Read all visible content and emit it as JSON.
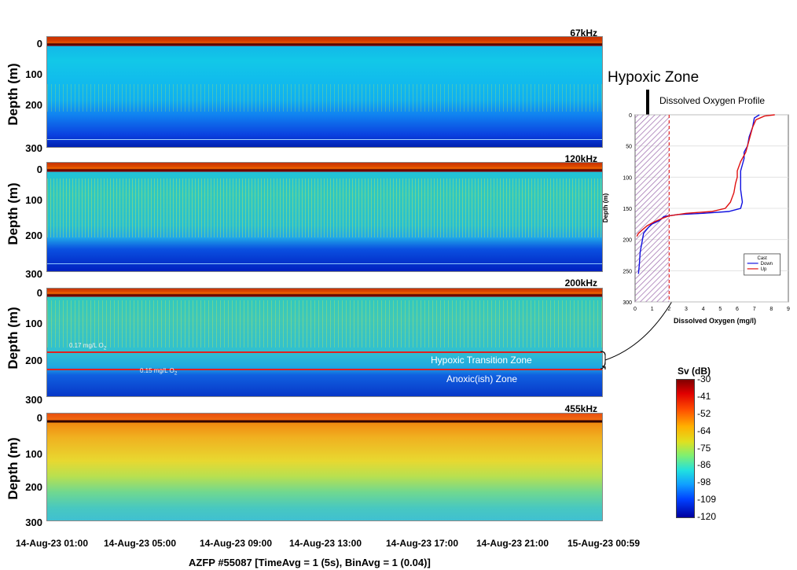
{
  "chart_data": [
    {
      "type": "heatmap",
      "title": "67kHz",
      "ylabel": "Depth (m)",
      "ylim": [
        0,
        300
      ],
      "ytick_labels": [
        "0",
        "100",
        "200",
        "300"
      ]
    },
    {
      "type": "heatmap",
      "title": "120kHz",
      "ylabel": "Depth (m)",
      "ylim": [
        0,
        300
      ],
      "ytick_labels": [
        "0",
        "100",
        "200",
        "300"
      ]
    },
    {
      "type": "heatmap",
      "title": "200kHz",
      "ylabel": "Depth (m)",
      "ylim": [
        0,
        300
      ],
      "ytick_labels": [
        "0",
        "100",
        "200",
        "300"
      ],
      "annotations": {
        "line1": "0.17 mg/L O",
        "line1_depth": 178,
        "line2": "0.15 mg/L O",
        "line2_depth": 225,
        "zone1": "Hypoxic Transition Zone",
        "zone2": "Anoxic(ish) Zone",
        "subscript": "2"
      }
    },
    {
      "type": "heatmap",
      "title": "455kHz",
      "ylabel": "Depth (m)",
      "ylim": [
        0,
        300
      ],
      "ytick_labels": [
        "0",
        "100",
        "200",
        "300"
      ],
      "x_tick_labels": [
        "14-Aug-23 01:00",
        "14-Aug-23 05:00",
        "14-Aug-23 09:00",
        "14-Aug-23 13:00",
        "14-Aug-23 17:00",
        "14-Aug-23 21:00",
        "15-Aug-23 00:59"
      ],
      "xlabel": "AZFP #55087 [TimeAvg = 1 (5s), BinAvg = 1 (0.04)]"
    },
    {
      "type": "line",
      "title": "Dissolved Oxygen Profile",
      "xlabel": "Dissolved Oxygen (mg/l)",
      "ylabel": "Depth (m)",
      "xlim": [
        0,
        9
      ],
      "ylim": [
        300,
        0
      ],
      "xticks": [
        0,
        1,
        2,
        3,
        4,
        5,
        6,
        7,
        8,
        9
      ],
      "yticks": [
        0,
        50,
        100,
        150,
        200,
        250,
        300
      ],
      "hypoxic_threshold": 2,
      "legend": {
        "title": "Cast",
        "entries": [
          "Down",
          "Up"
        ]
      },
      "series": [
        {
          "name": "Down",
          "color": "#1010e0",
          "points": [
            [
              7.3,
              0
            ],
            [
              7.0,
              5
            ],
            [
              6.9,
              20
            ],
            [
              6.7,
              35
            ],
            [
              6.6,
              50
            ],
            [
              6.4,
              60
            ],
            [
              6.4,
              70
            ],
            [
              6.3,
              80
            ],
            [
              6.2,
              90
            ],
            [
              6.2,
              100
            ],
            [
              6.2,
              120
            ],
            [
              6.3,
              140
            ],
            [
              6.2,
              150
            ],
            [
              5.5,
              155
            ],
            [
              4.0,
              158
            ],
            [
              2.5,
              160
            ],
            [
              1.7,
              163
            ],
            [
              1.4,
              170
            ],
            [
              1.0,
              175
            ],
            [
              0.8,
              180
            ],
            [
              0.5,
              190
            ],
            [
              0.4,
              205
            ],
            [
              0.3,
              220
            ],
            [
              0.25,
              240
            ],
            [
              0.2,
              255
            ]
          ]
        },
        {
          "name": "Up",
          "color": "#e01010",
          "points": [
            [
              8.2,
              0
            ],
            [
              7.6,
              2
            ],
            [
              7.1,
              8
            ],
            [
              6.9,
              20
            ],
            [
              6.7,
              40
            ],
            [
              6.5,
              60
            ],
            [
              6.2,
              75
            ],
            [
              6.0,
              90
            ],
            [
              6.0,
              100
            ],
            [
              5.9,
              110
            ],
            [
              5.8,
              125
            ],
            [
              5.6,
              140
            ],
            [
              5.3,
              150
            ],
            [
              4.5,
              155
            ],
            [
              3.0,
              158
            ],
            [
              2.0,
              162
            ],
            [
              1.6,
              166
            ],
            [
              1.1,
              172
            ],
            [
              0.7,
              178
            ],
            [
              0.4,
              185
            ],
            [
              0.2,
              190
            ],
            [
              0.1,
              195
            ]
          ]
        }
      ]
    },
    {
      "type": "heatmap",
      "title": "Sv (dB)",
      "colorbar_ticks": [
        "-30",
        "-41",
        "-52",
        "-64",
        "-75",
        "-86",
        "-98",
        "-109",
        "-120"
      ]
    }
  ],
  "annotation": {
    "hypoxic_zone": "Hypoxic Zone"
  }
}
